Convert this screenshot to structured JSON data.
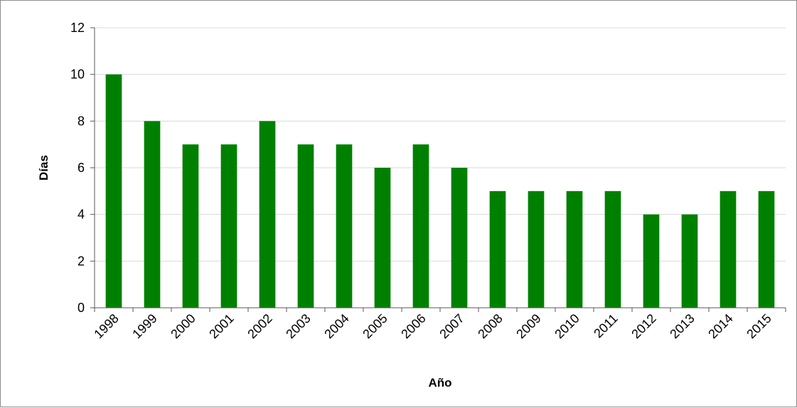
{
  "chart_data": {
    "type": "bar",
    "title": "",
    "xlabel": "Año",
    "ylabel": "Días",
    "categories": [
      "1998",
      "1999",
      "2000",
      "2001",
      "2002",
      "2003",
      "2004",
      "2005",
      "2006",
      "2007",
      "2008",
      "2009",
      "2010",
      "2011",
      "2012",
      "2013",
      "2014",
      "2015"
    ],
    "series": [
      {
        "values": [
          10,
          8,
          7,
          7,
          8,
          7,
          7,
          6,
          7,
          6,
          5,
          5,
          5,
          5,
          4,
          4,
          5,
          5
        ],
        "color": "#008000"
      }
    ],
    "ylim": [
      0,
      12
    ],
    "yticks": [
      0,
      2,
      4,
      6,
      8,
      10,
      12
    ],
    "grid": true,
    "legend": "none"
  }
}
